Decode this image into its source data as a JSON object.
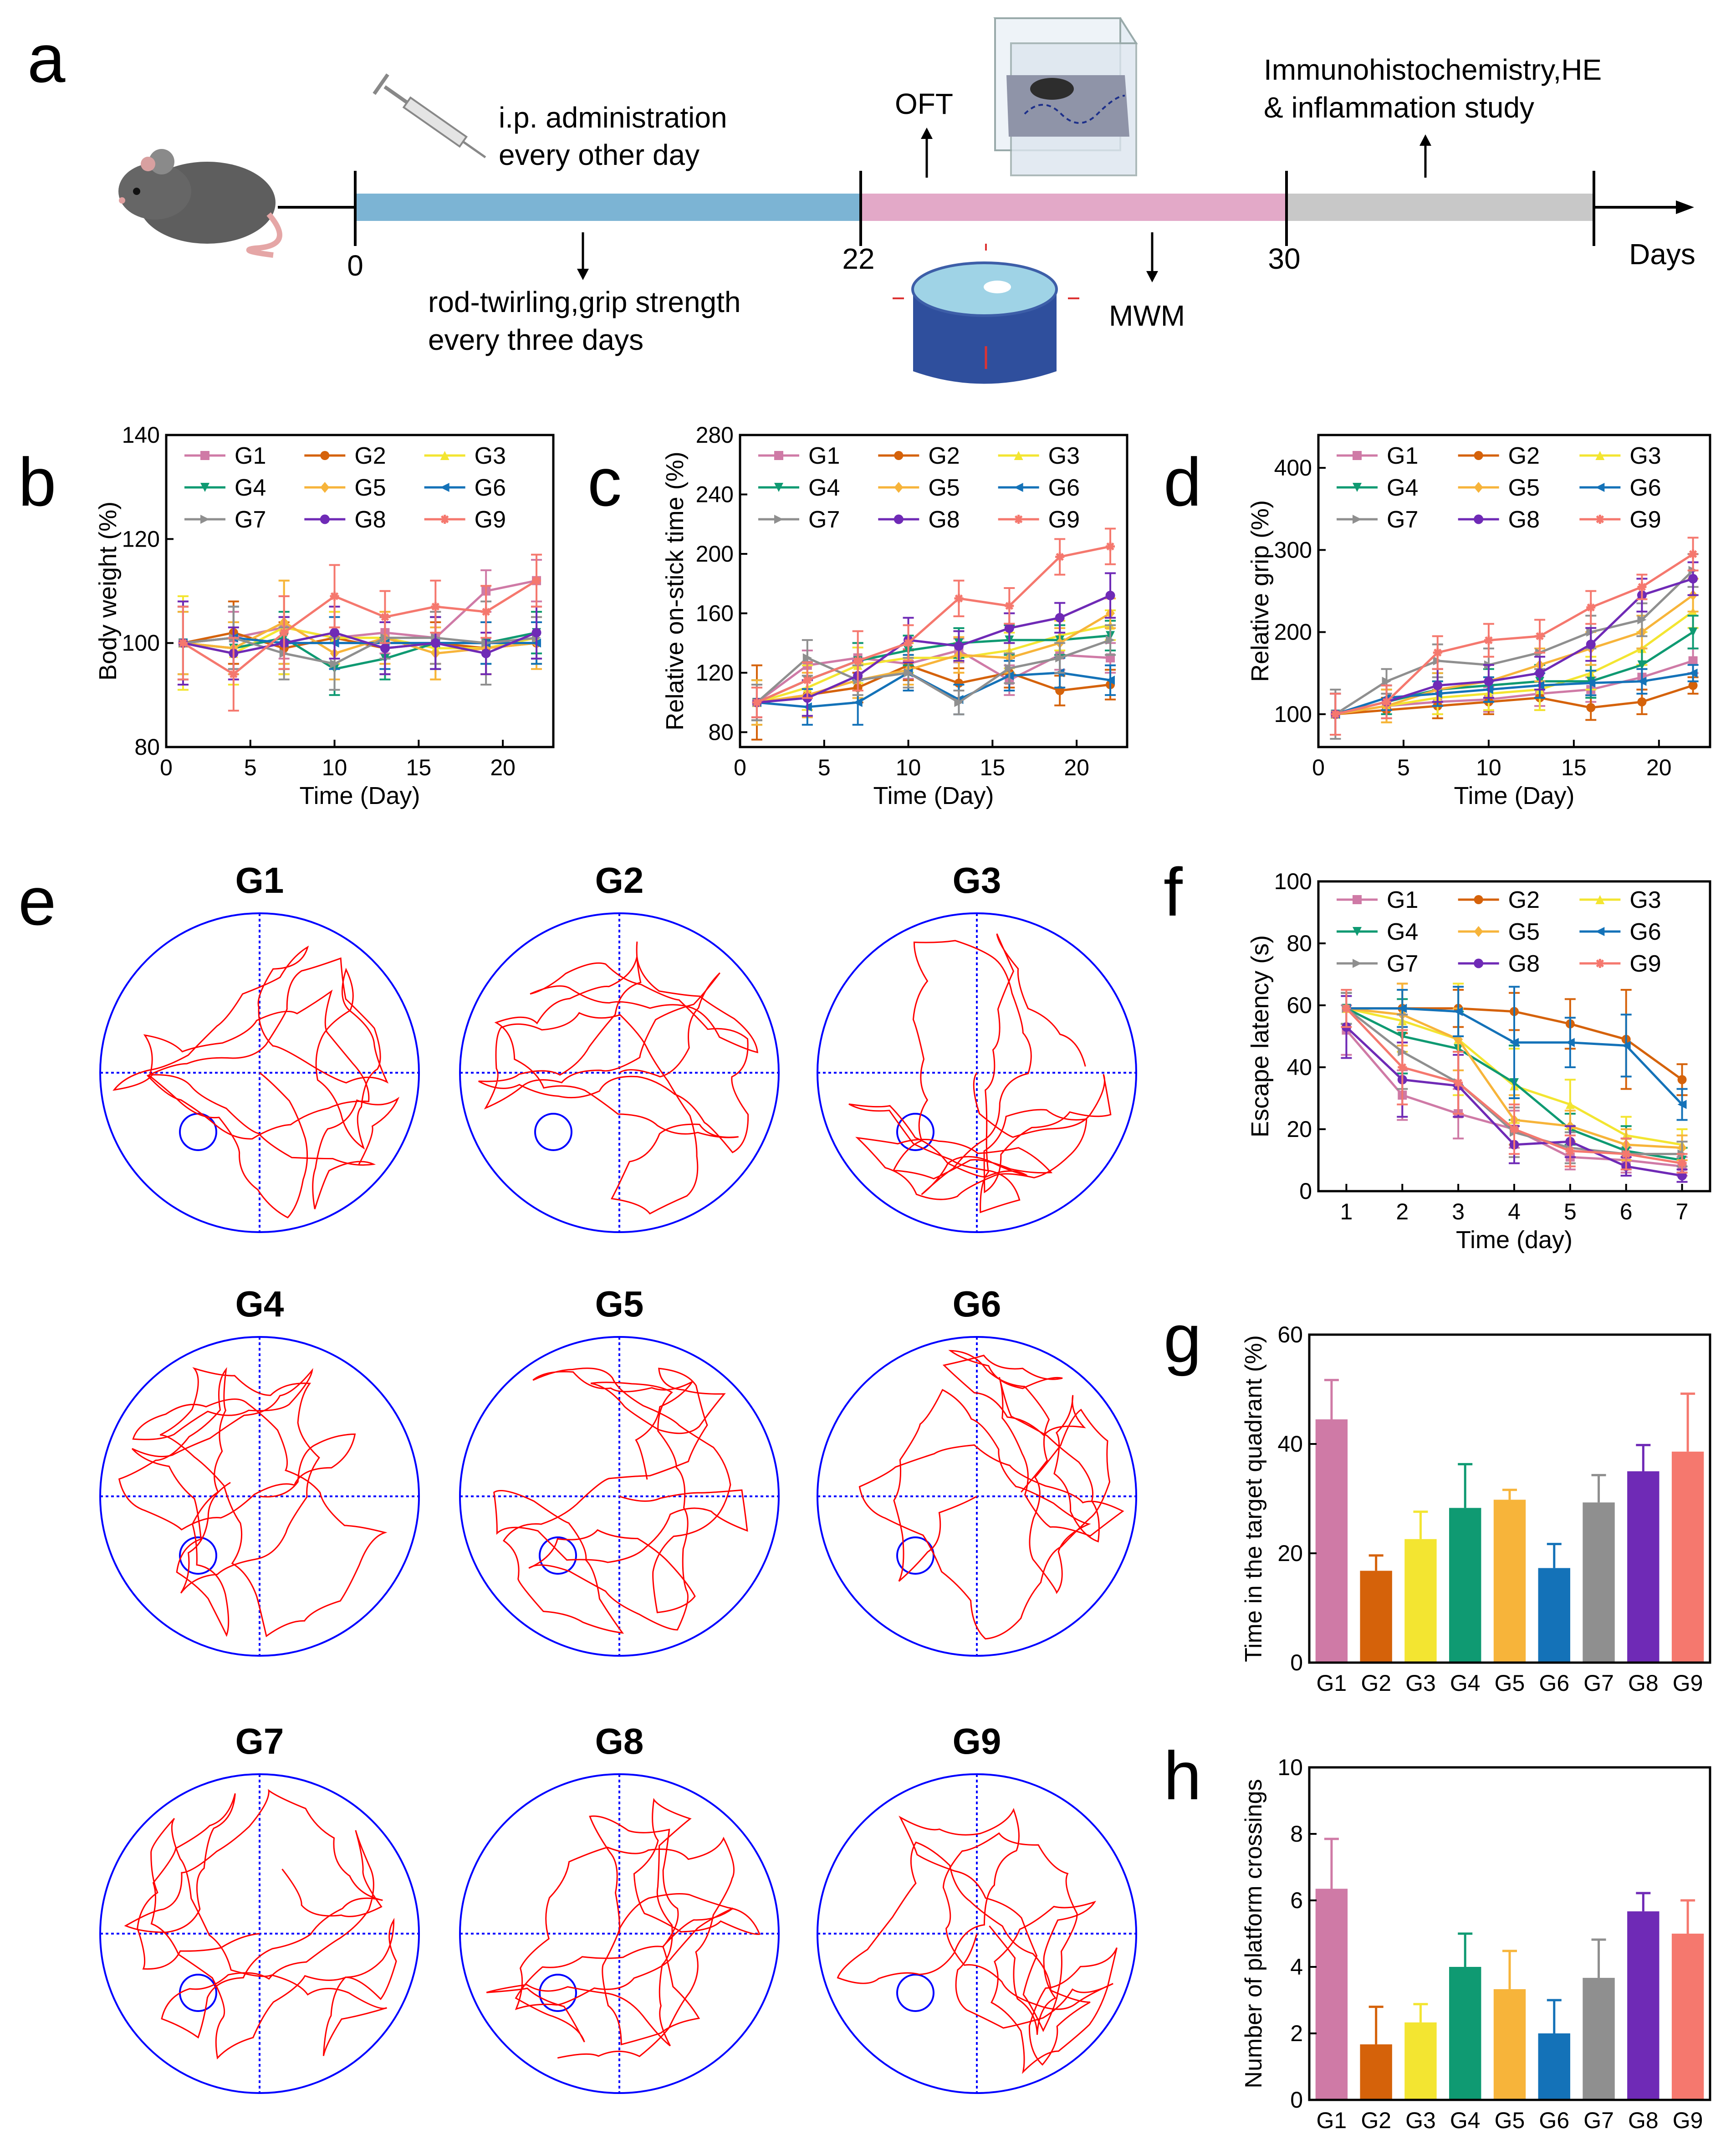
{
  "colors": {
    "G1": "#cf7aa6",
    "G2": "#d5620a",
    "G3": "#f3e531",
    "G4": "#0f9a72",
    "G5": "#f7b43a",
    "G6": "#1472b8",
    "G7": "#8f8f8f",
    "G8": "#6f2ab6",
    "G9": "#f5786e",
    "bar_treat": "#7cb4d4",
    "bar_test": "#e3a9c8",
    "bar_post": "#c8c8c8",
    "track": "#ff0000",
    "pool": "#0000ff"
  },
  "panel_labels": {
    "a": "a",
    "b": "b",
    "c": "c",
    "d": "d",
    "e": "e",
    "f": "f",
    "g": "g",
    "h": "h"
  },
  "timeline": {
    "day0": "0",
    "day22": "22",
    "day30": "30",
    "days_label": "Days",
    "ip_line1": "i.p. administration",
    "ip_line2": "every other day",
    "oft": "OFT",
    "immuno_line1": "Immunohistochemistry,HE",
    "immuno_line2": "& inflammation study",
    "rod_line1": "rod-twirling,grip strength",
    "rod_line2": "every three days",
    "mwm": "MWM"
  },
  "chart_data": [
    {
      "id": "b",
      "type": "line",
      "xlabel": "Time (Day)",
      "ylabel": "Body weight (%)",
      "xlim": [
        0,
        23
      ],
      "ylim": [
        80,
        140
      ],
      "xticks": [
        0,
        5,
        10,
        15,
        20
      ],
      "yticks": [
        80,
        100,
        120,
        140
      ],
      "x": [
        1,
        4,
        7,
        10,
        13,
        16,
        19,
        22
      ],
      "series": [
        {
          "name": "G1",
          "values": [
            100,
            101,
            103,
            101,
            102,
            101,
            110,
            112
          ],
          "err": [
            8,
            5,
            6,
            5,
            4,
            5,
            4,
            4
          ]
        },
        {
          "name": "G2",
          "values": [
            100,
            102,
            99,
            101,
            99,
            100,
            99,
            100
          ],
          "err": [
            7,
            6,
            5,
            5,
            5,
            4,
            5,
            4
          ]
        },
        {
          "name": "G3",
          "values": [
            100,
            98,
            103,
            101,
            101,
            99,
            99,
            101
          ],
          "err": [
            9,
            6,
            9,
            5,
            5,
            6,
            5,
            5
          ]
        },
        {
          "name": "G4",
          "values": [
            100,
            99,
            101,
            95,
            97,
            100,
            100,
            102
          ],
          "err": [
            6,
            5,
            5,
            5,
            4,
            5,
            4,
            4
          ]
        },
        {
          "name": "G5",
          "values": [
            100,
            99,
            104,
            98,
            101,
            98,
            99,
            100
          ],
          "err": [
            6,
            5,
            8,
            5,
            5,
            5,
            5,
            5
          ]
        },
        {
          "name": "G6",
          "values": [
            100,
            101,
            100,
            100,
            100,
            100,
            100,
            100
          ],
          "err": [
            7,
            6,
            5,
            5,
            5,
            5,
            4,
            4
          ]
        },
        {
          "name": "G7",
          "values": [
            100,
            101,
            98,
            96,
            101,
            101,
            100,
            101
          ],
          "err": [
            7,
            6,
            5,
            5,
            4,
            5,
            8,
            4
          ]
        },
        {
          "name": "G8",
          "values": [
            100,
            98,
            100,
            102,
            99,
            100,
            98,
            102
          ],
          "err": [
            8,
            5,
            5,
            5,
            5,
            5,
            4,
            5
          ]
        },
        {
          "name": "G9",
          "values": [
            100,
            94,
            102,
            109,
            105,
            107,
            106,
            112
          ],
          "err": [
            7,
            7,
            7,
            6,
            5,
            5,
            5,
            5
          ]
        }
      ],
      "legend": "top"
    },
    {
      "id": "c",
      "type": "line",
      "xlabel": "Time (Day)",
      "ylabel": "Relative on-stick time (%)",
      "xlim": [
        0,
        23
      ],
      "ylim": [
        70,
        280
      ],
      "xticks": [
        0,
        5,
        10,
        15,
        20
      ],
      "yticks": [
        80,
        120,
        160,
        200,
        240,
        280
      ],
      "x": [
        1,
        4,
        7,
        10,
        13,
        16,
        19,
        22
      ],
      "series": [
        {
          "name": "G1",
          "values": [
            100,
            125,
            130,
            126,
            135,
            115,
            132,
            130
          ],
          "err": [
            10,
            10,
            10,
            10,
            8,
            10,
            10,
            10
          ]
        },
        {
          "name": "G2",
          "values": [
            100,
            105,
            110,
            125,
            113,
            120,
            108,
            112
          ],
          "err": [
            25,
            10,
            10,
            10,
            10,
            10,
            10,
            10
          ]
        },
        {
          "name": "G3",
          "values": [
            100,
            110,
            125,
            130,
            130,
            135,
            145,
            152
          ],
          "err": [
            12,
            15,
            12,
            10,
            10,
            12,
            10,
            10
          ]
        },
        {
          "name": "G4",
          "values": [
            100,
            115,
            128,
            135,
            140,
            142,
            142,
            145
          ],
          "err": [
            15,
            12,
            12,
            10,
            10,
            10,
            10,
            10
          ]
        },
        {
          "name": "G5",
          "values": [
            100,
            105,
            115,
            122,
            132,
            130,
            140,
            160
          ],
          "err": [
            15,
            15,
            12,
            10,
            12,
            10,
            10,
            10
          ]
        },
        {
          "name": "G6",
          "values": [
            100,
            97,
            100,
            120,
            102,
            118,
            120,
            115
          ],
          "err": [
            12,
            12,
            15,
            12,
            10,
            10,
            10,
            10
          ]
        },
        {
          "name": "G7",
          "values": [
            100,
            130,
            115,
            120,
            100,
            123,
            130,
            142
          ],
          "err": [
            12,
            12,
            10,
            10,
            8,
            10,
            10,
            10
          ]
        },
        {
          "name": "G8",
          "values": [
            100,
            103,
            118,
            142,
            138,
            150,
            157,
            172
          ],
          "err": [
            10,
            12,
            10,
            15,
            10,
            10,
            10,
            15
          ]
        },
        {
          "name": "G9",
          "values": [
            100,
            115,
            128,
            140,
            170,
            165,
            198,
            205
          ],
          "err": [
            10,
            12,
            20,
            12,
            12,
            12,
            12,
            12
          ]
        }
      ],
      "legend": "top"
    },
    {
      "id": "d",
      "type": "line",
      "xlabel": "Time (Day)",
      "ylabel": "Relative grip (%)",
      "xlim": [
        0,
        23
      ],
      "ylim": [
        60,
        440
      ],
      "xticks": [
        0,
        5,
        10,
        15,
        20
      ],
      "yticks": [
        100,
        200,
        300,
        400
      ],
      "x": [
        1,
        4,
        7,
        10,
        13,
        16,
        19,
        22
      ],
      "series": [
        {
          "name": "G1",
          "values": [
            100,
            110,
            115,
            118,
            125,
            130,
            145,
            165
          ],
          "err": [
            25,
            15,
            15,
            15,
            15,
            15,
            15,
            15
          ]
        },
        {
          "name": "G2",
          "values": [
            100,
            105,
            110,
            115,
            120,
            108,
            115,
            135
          ],
          "err": [
            25,
            15,
            15,
            15,
            15,
            15,
            15,
            10
          ]
        },
        {
          "name": "G3",
          "values": [
            100,
            110,
            120,
            125,
            130,
            150,
            180,
            225
          ],
          "err": [
            25,
            20,
            20,
            20,
            25,
            20,
            20,
            20
          ]
        },
        {
          "name": "G4",
          "values": [
            100,
            115,
            130,
            135,
            140,
            140,
            160,
            200
          ],
          "err": [
            25,
            15,
            20,
            20,
            20,
            20,
            20,
            20
          ]
        },
        {
          "name": "G5",
          "values": [
            100,
            110,
            130,
            140,
            160,
            180,
            200,
            245
          ],
          "err": [
            25,
            20,
            20,
            20,
            20,
            20,
            20,
            20
          ]
        },
        {
          "name": "G6",
          "values": [
            100,
            120,
            125,
            130,
            135,
            138,
            140,
            150
          ],
          "err": [
            25,
            15,
            15,
            15,
            15,
            15,
            15,
            10
          ]
        },
        {
          "name": "G7",
          "values": [
            100,
            140,
            165,
            160,
            175,
            200,
            215,
            275
          ],
          "err": [
            30,
            15,
            20,
            20,
            20,
            20,
            20,
            20
          ]
        },
        {
          "name": "G8",
          "values": [
            100,
            115,
            135,
            140,
            150,
            185,
            245,
            265
          ],
          "err": [
            25,
            20,
            20,
            20,
            20,
            20,
            20,
            20
          ]
        },
        {
          "name": "G9",
          "values": [
            100,
            115,
            175,
            190,
            195,
            230,
            255,
            295
          ],
          "err": [
            25,
            20,
            20,
            20,
            20,
            20,
            15,
            20
          ]
        }
      ],
      "legend": "top"
    },
    {
      "id": "f",
      "type": "line",
      "xlabel": "Time (day)",
      "ylabel": "Escape latency (s)",
      "xlim": [
        0.5,
        7.5
      ],
      "ylim": [
        0,
        100
      ],
      "xticks": [
        1,
        2,
        3,
        4,
        5,
        6,
        7
      ],
      "yticks": [
        0,
        20,
        40,
        60,
        80,
        100
      ],
      "x": [
        1,
        2,
        3,
        4,
        5,
        6,
        7
      ],
      "series": [
        {
          "name": "G1",
          "values": [
            52,
            31,
            25,
            20,
            11,
            10,
            8
          ],
          "err": [
            8,
            8,
            8,
            6,
            4,
            4,
            3
          ]
        },
        {
          "name": "G2",
          "values": [
            59,
            59,
            59,
            58,
            54,
            49,
            36
          ],
          "err": [
            5,
            8,
            6,
            6,
            8,
            16,
            5
          ]
        },
        {
          "name": "G3",
          "values": [
            59,
            55,
            49,
            34,
            28,
            18,
            15
          ],
          "err": [
            5,
            10,
            18,
            12,
            8,
            6,
            5
          ]
        },
        {
          "name": "G4",
          "values": [
            59,
            50,
            46,
            35,
            20,
            13,
            10
          ],
          "err": [
            5,
            12,
            12,
            12,
            5,
            8,
            4
          ]
        },
        {
          "name": "G5",
          "values": [
            59,
            57,
            49,
            23,
            21,
            15,
            14
          ],
          "err": [
            5,
            10,
            10,
            8,
            5,
            5,
            4
          ]
        },
        {
          "name": "G6",
          "values": [
            59,
            59,
            58,
            48,
            48,
            47,
            28
          ],
          "err": [
            5,
            6,
            8,
            18,
            8,
            10,
            5
          ]
        },
        {
          "name": "G7",
          "values": [
            59,
            45,
            35,
            19,
            14,
            12,
            12
          ],
          "err": [
            5,
            12,
            10,
            8,
            5,
            5,
            4
          ]
        },
        {
          "name": "G8",
          "values": [
            53,
            36,
            34,
            15,
            16,
            8,
            5
          ],
          "err": [
            10,
            12,
            10,
            6,
            5,
            3,
            2
          ]
        },
        {
          "name": "G9",
          "values": [
            59,
            40,
            35,
            20,
            13,
            12,
            9
          ],
          "err": [
            6,
            12,
            10,
            8,
            5,
            5,
            3
          ]
        }
      ],
      "legend": "top"
    },
    {
      "id": "g",
      "type": "bar",
      "xlabel": "",
      "ylabel": "Time in the target quadrant (%)",
      "ylim": [
        0,
        60
      ],
      "yticks": [
        0,
        20,
        40,
        60
      ],
      "categories": [
        "G1",
        "G2",
        "G3",
        "G4",
        "G5",
        "G6",
        "G7",
        "G8",
        "G9"
      ],
      "values": [
        44.5,
        16.8,
        22.6,
        28.3,
        29.8,
        17.3,
        29.3,
        35,
        38.6
      ],
      "err": [
        7.2,
        2.8,
        5,
        8,
        1.8,
        4.4,
        5,
        4.8,
        10.6
      ]
    },
    {
      "id": "h",
      "type": "bar",
      "xlabel": "",
      "ylabel": "Number of platform crossings",
      "ylim": [
        0,
        10
      ],
      "yticks": [
        0,
        2,
        4,
        6,
        8,
        10
      ],
      "categories": [
        "G1",
        "G2",
        "G3",
        "G4",
        "G5",
        "G6",
        "G7",
        "G8",
        "G9"
      ],
      "values": [
        6.35,
        1.67,
        2.33,
        4.0,
        3.33,
        2.0,
        3.67,
        5.67,
        5.0
      ],
      "err": [
        1.5,
        1.13,
        0.55,
        1.0,
        1.15,
        1.0,
        1.15,
        0.55,
        1.0
      ]
    }
  ],
  "maze_titles": [
    "G1",
    "G2",
    "G3",
    "G4",
    "G5",
    "G6",
    "G7",
    "G8",
    "G9"
  ]
}
